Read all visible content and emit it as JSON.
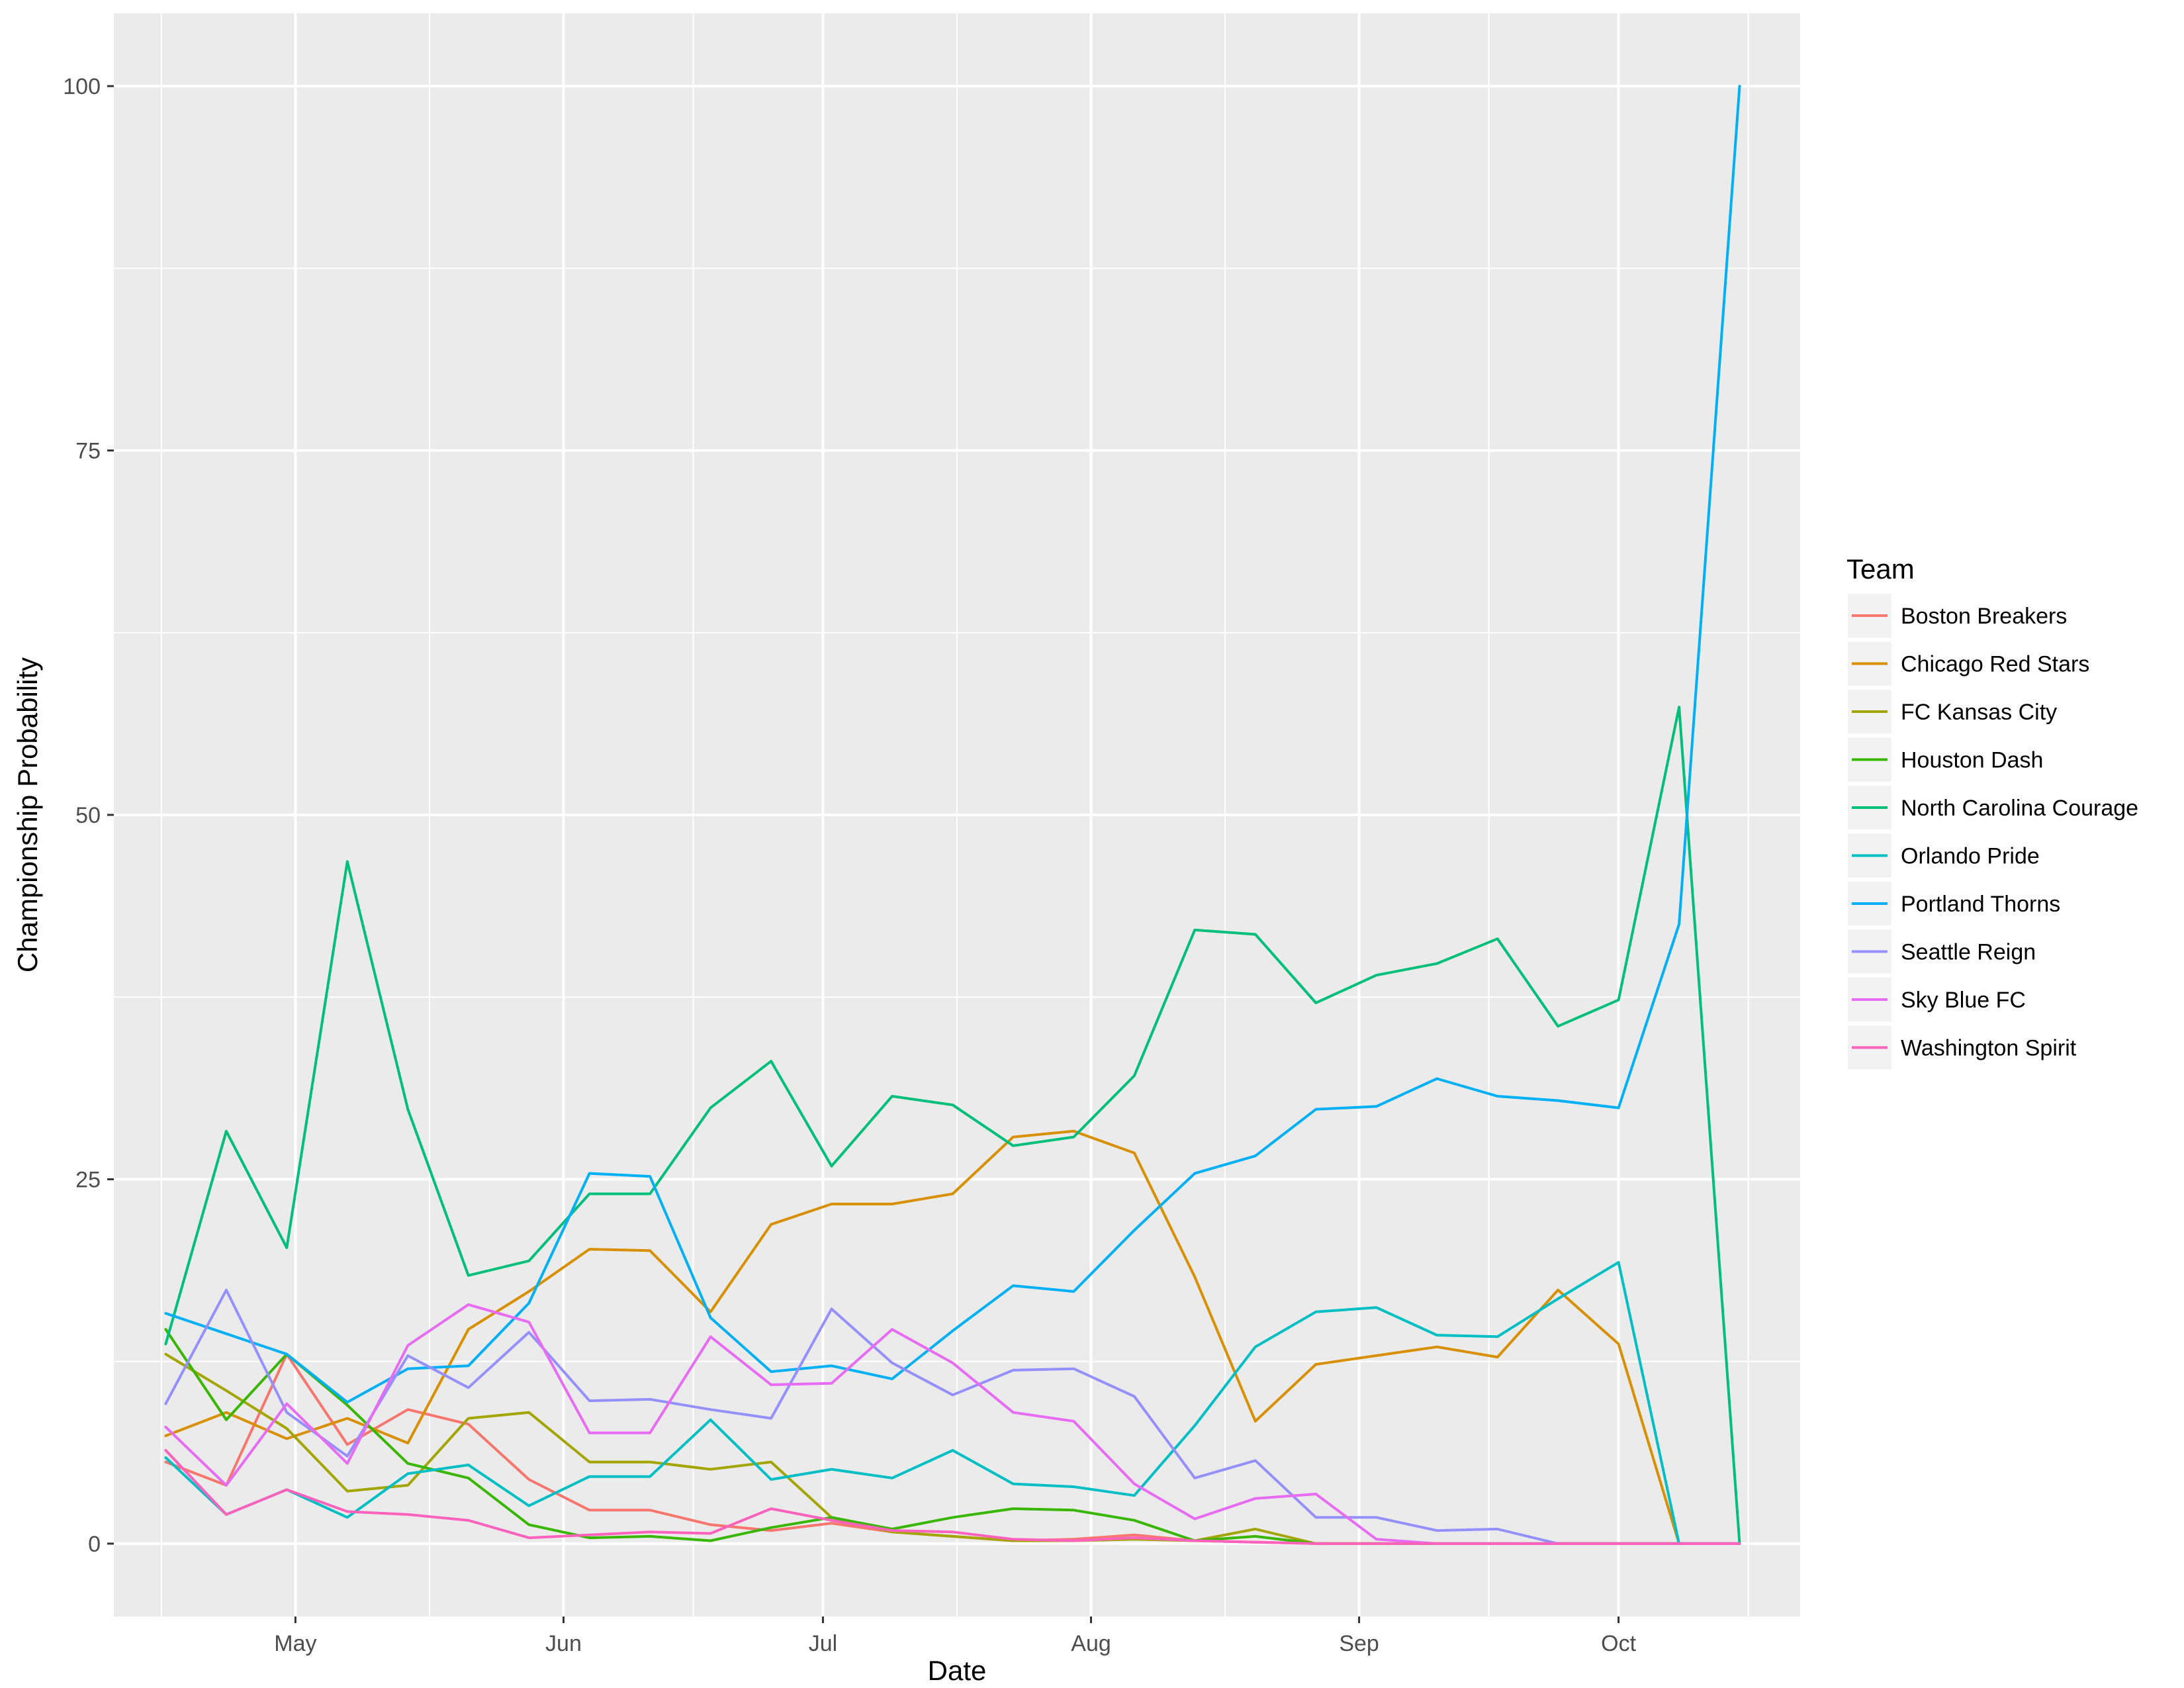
{
  "chart_data": {
    "type": "line",
    "xlabel": "Date",
    "ylabel": "Championship Probability",
    "ylim": [
      -5,
      105
    ],
    "yticks": [
      0,
      25,
      50,
      75,
      100
    ],
    "xlim": [
      "2017-04-10",
      "2017-10-22"
    ],
    "xticks": [
      {
        "label": "May",
        "date": "2017-05-01"
      },
      {
        "label": "Jun",
        "date": "2017-06-01"
      },
      {
        "label": "Jul",
        "date": "2017-07-01"
      },
      {
        "label": "Aug",
        "date": "2017-08-01"
      },
      {
        "label": "Sep",
        "date": "2017-09-01"
      },
      {
        "label": "Oct",
        "date": "2017-10-01"
      }
    ],
    "x": [
      "2017-04-16",
      "2017-04-23",
      "2017-04-30",
      "2017-05-07",
      "2017-05-14",
      "2017-05-21",
      "2017-05-28",
      "2017-06-04",
      "2017-06-11",
      "2017-06-18",
      "2017-06-25",
      "2017-07-02",
      "2017-07-09",
      "2017-07-16",
      "2017-07-23",
      "2017-07-30",
      "2017-08-06",
      "2017-08-13",
      "2017-08-20",
      "2017-08-27",
      "2017-09-03",
      "2017-09-10",
      "2017-09-17",
      "2017-09-24",
      "2017-10-01",
      "2017-10-08",
      "2017-10-15"
    ],
    "legend": {
      "title": "Team",
      "position": "right"
    },
    "grid": true,
    "series": [
      {
        "name": "Boston Breakers",
        "color": "#F8766D",
        "values": [
          5.6,
          4.0,
          13.0,
          6.8,
          9.2,
          8.2,
          4.4,
          2.3,
          2.3,
          1.3,
          0.9,
          1.4,
          0.8,
          0.5,
          0.2,
          0.3,
          0.6,
          0.2,
          0.1,
          0.0,
          0.0,
          0.0,
          0.0,
          0.0,
          0.0,
          0.0,
          0.0
        ]
      },
      {
        "name": "Chicago Red Stars",
        "color": "#D89000",
        "values": [
          7.4,
          9.0,
          7.2,
          8.6,
          6.9,
          14.7,
          17.3,
          20.2,
          20.1,
          15.9,
          21.9,
          23.3,
          23.3,
          24.0,
          27.9,
          28.3,
          26.8,
          18.3,
          8.4,
          12.3,
          12.9,
          13.5,
          12.8,
          17.4,
          13.7,
          0.0,
          0.0
        ]
      },
      {
        "name": "FC Kansas City",
        "color": "#A3A500",
        "values": [
          13.0,
          10.5,
          7.9,
          3.6,
          4.0,
          8.6,
          9.0,
          5.6,
          5.6,
          5.1,
          5.6,
          1.8,
          0.8,
          0.5,
          0.2,
          0.2,
          0.3,
          0.2,
          1.0,
          0.0,
          0.0,
          0.0,
          0.0,
          0.0,
          0.0,
          0.0,
          0.0
        ]
      },
      {
        "name": "Houston Dash",
        "color": "#39B600",
        "values": [
          14.7,
          8.5,
          13.0,
          9.5,
          5.5,
          4.5,
          1.3,
          0.4,
          0.5,
          0.2,
          1.1,
          1.8,
          1.0,
          1.8,
          2.4,
          2.3,
          1.6,
          0.2,
          0.5,
          0.0,
          0.0,
          0.0,
          0.0,
          0.0,
          0.0,
          0.0,
          0.0
        ]
      },
      {
        "name": "North Carolina Courage",
        "color": "#00BF7D",
        "values": [
          13.7,
          28.3,
          20.3,
          46.8,
          29.8,
          18.4,
          19.4,
          24.0,
          24.0,
          29.9,
          33.1,
          25.9,
          30.7,
          30.1,
          27.3,
          27.9,
          32.1,
          42.1,
          41.8,
          37.1,
          39.0,
          39.8,
          41.5,
          35.5,
          37.3,
          57.4,
          0.0
        ]
      },
      {
        "name": "Orlando Pride",
        "color": "#00BFC4",
        "values": [
          5.9,
          2.0,
          3.7,
          1.8,
          4.8,
          5.4,
          2.6,
          4.6,
          4.6,
          8.5,
          4.4,
          5.1,
          4.5,
          6.4,
          4.1,
          3.9,
          3.3,
          8.1,
          13.5,
          15.9,
          16.2,
          14.3,
          14.2,
          16.8,
          19.3,
          0.0,
          0.0
        ]
      },
      {
        "name": "Portland Thorns",
        "color": "#00B0F6",
        "values": [
          15.8,
          14.4,
          13.0,
          9.7,
          12.0,
          12.2,
          16.5,
          25.4,
          25.2,
          15.5,
          11.8,
          12.2,
          11.3,
          14.6,
          17.7,
          17.3,
          21.5,
          25.4,
          26.6,
          29.8,
          30.0,
          31.9,
          30.7,
          30.4,
          29.9,
          42.5,
          100.0
        ]
      },
      {
        "name": "Seattle Reign",
        "color": "#9590FF",
        "values": [
          9.6,
          17.4,
          9.0,
          6.0,
          12.9,
          10.7,
          14.5,
          9.8,
          9.9,
          9.2,
          8.6,
          16.1,
          12.4,
          10.2,
          11.9,
          12.0,
          10.1,
          4.5,
          5.7,
          1.8,
          1.8,
          0.9,
          1.0,
          0.0,
          0.0,
          0.0,
          0.0
        ]
      },
      {
        "name": "Sky Blue FC",
        "color": "#E76BF3",
        "values": [
          8.0,
          4.0,
          9.6,
          5.5,
          13.6,
          16.4,
          15.2,
          7.6,
          7.6,
          14.2,
          10.9,
          11.0,
          14.7,
          12.4,
          9.0,
          8.4,
          4.1,
          1.7,
          3.1,
          3.4,
          0.3,
          0.0,
          0.0,
          0.0,
          0.0,
          0.0,
          0.0
        ]
      },
      {
        "name": "Washington Spirit",
        "color": "#FF62BC",
        "values": [
          6.4,
          2.0,
          3.7,
          2.2,
          2.0,
          1.6,
          0.4,
          0.6,
          0.8,
          0.7,
          2.4,
          1.6,
          0.9,
          0.8,
          0.3,
          0.2,
          0.4,
          0.2,
          0.1,
          0.0,
          0.0,
          0.0,
          0.0,
          0.0,
          0.0,
          0.0,
          0.0
        ]
      }
    ]
  }
}
